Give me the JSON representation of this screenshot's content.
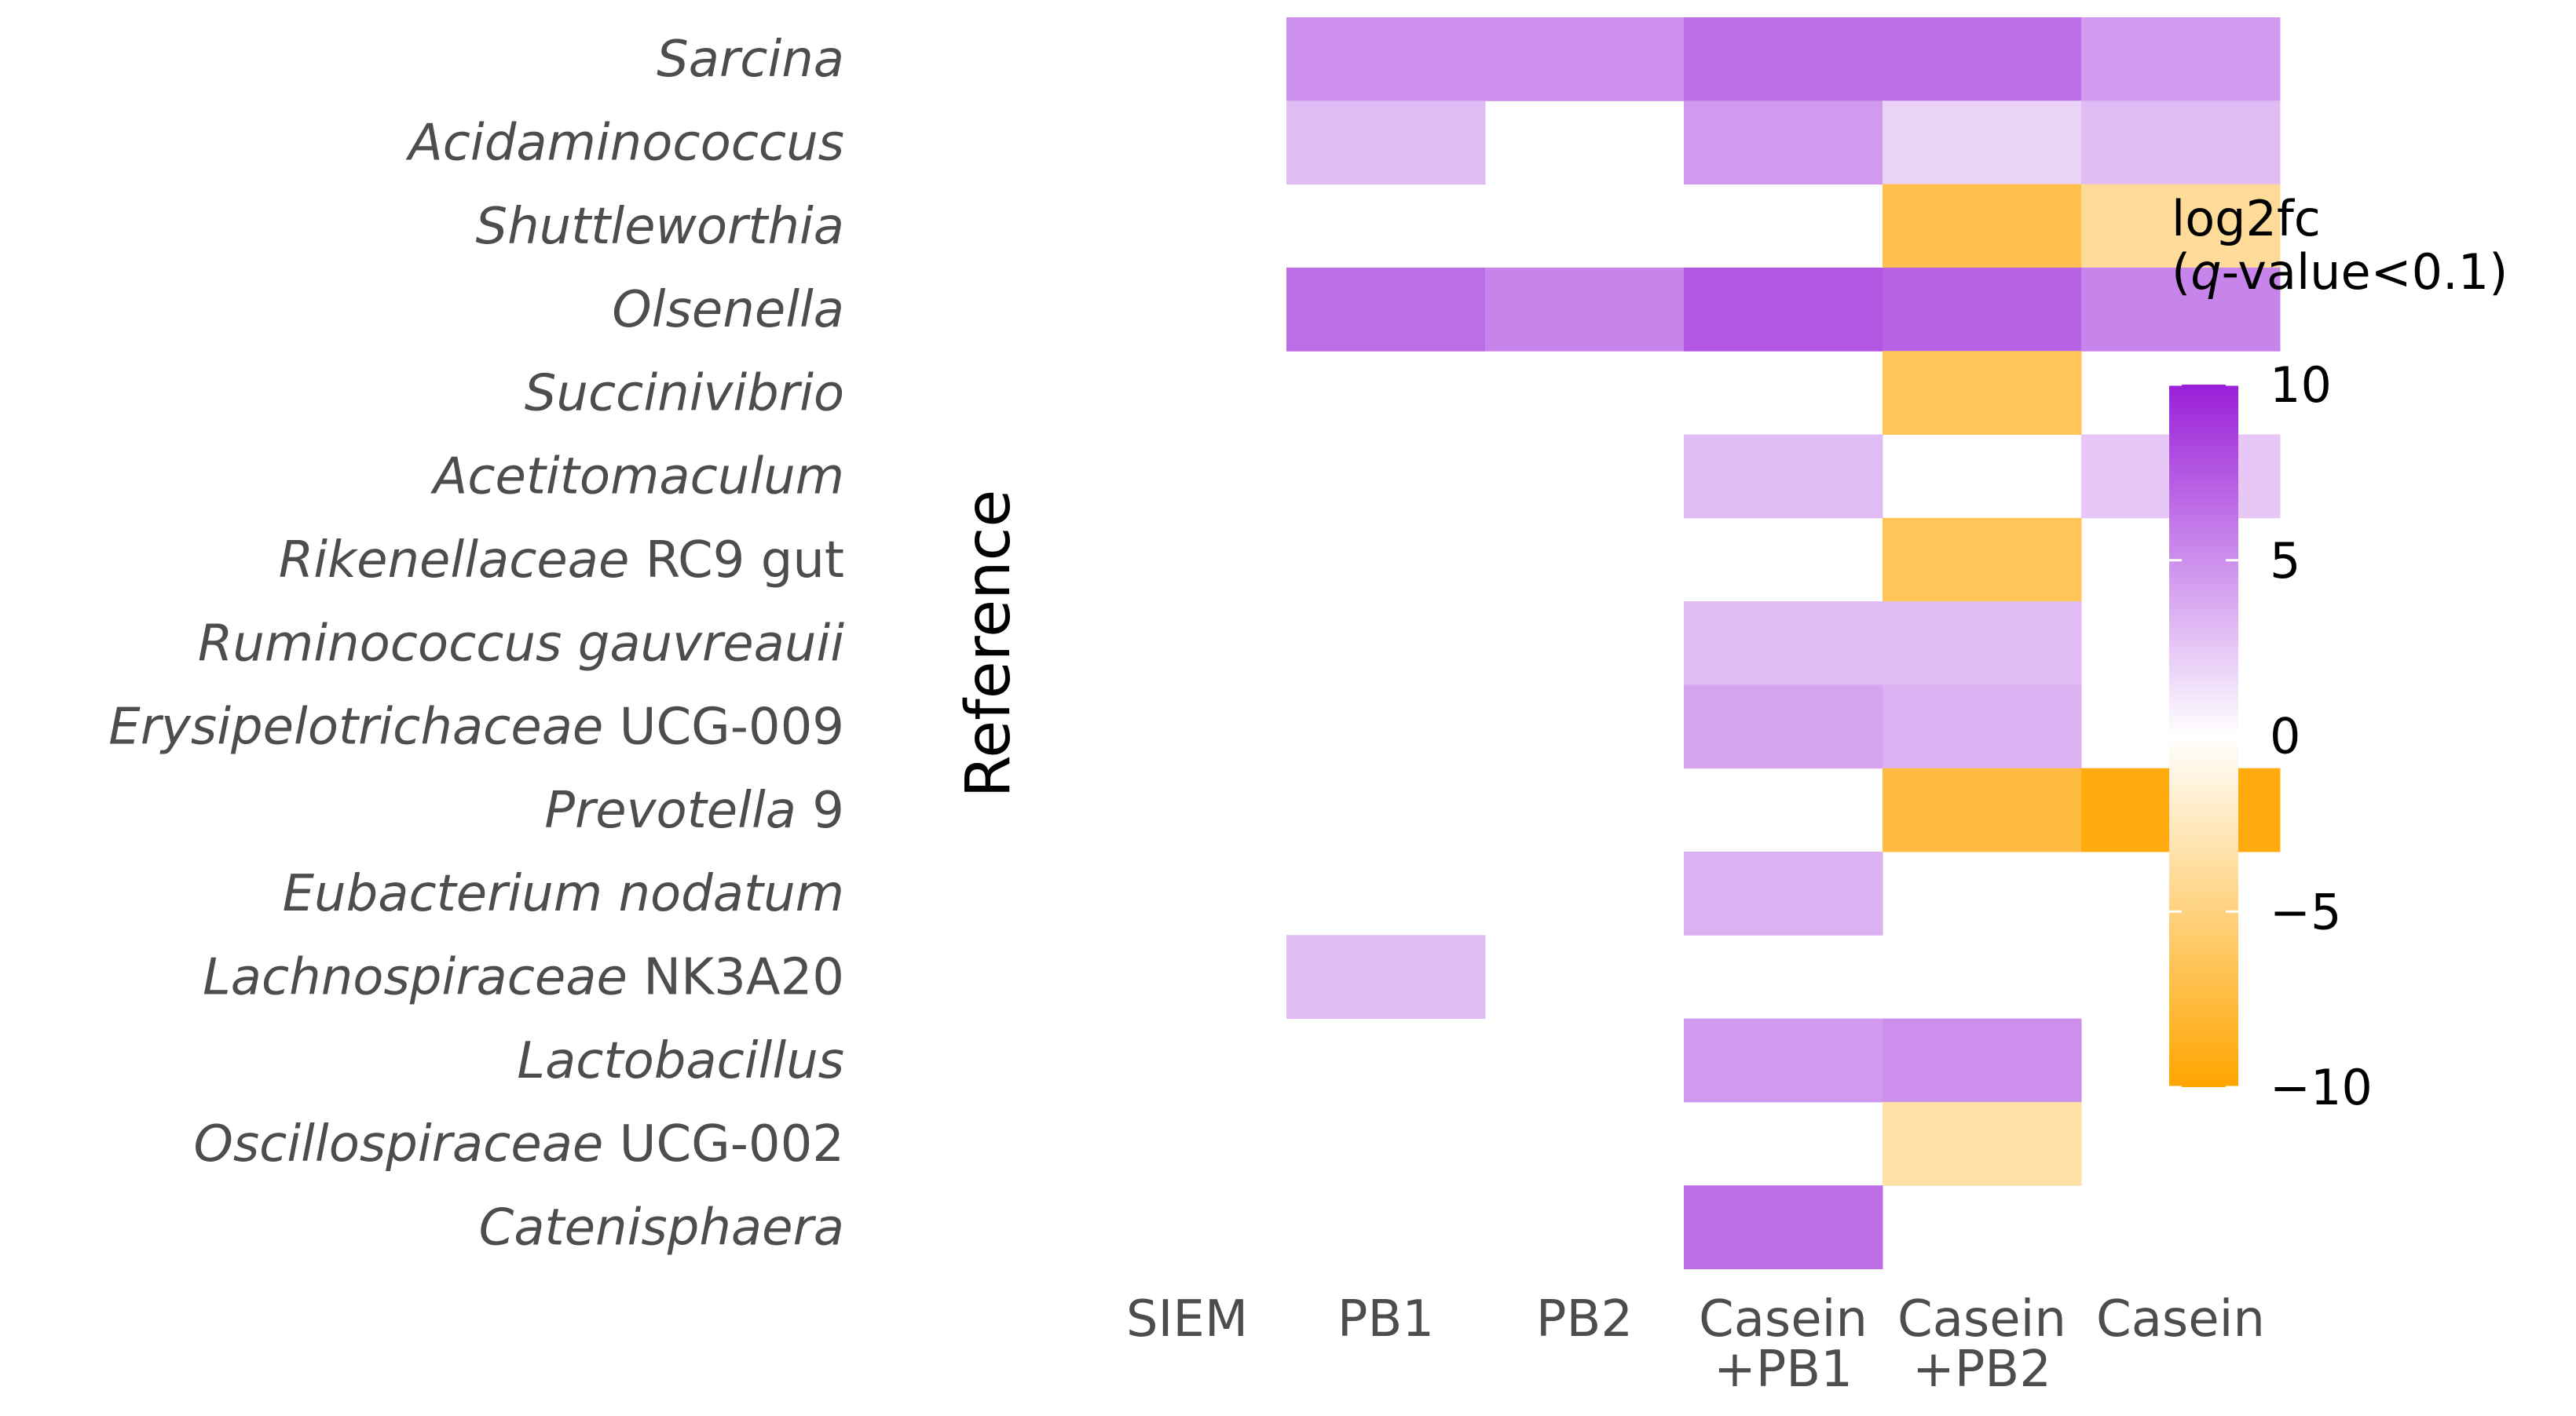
{
  "chart_data": {
    "type": "heatmap",
    "columns": [
      {
        "line1": "SIEM",
        "line2": ""
      },
      {
        "line1": "PB1",
        "line2": ""
      },
      {
        "line1": "PB2",
        "line2": ""
      },
      {
        "line1": "Casein",
        "line2": "+PB1"
      },
      {
        "line1": "Casein",
        "line2": "+PB2"
      },
      {
        "line1": "Casein",
        "line2": ""
      }
    ],
    "rows": [
      {
        "italic": "Sarcina",
        "plain": ""
      },
      {
        "italic": "Acidaminococcus",
        "plain": ""
      },
      {
        "italic": "Shuttleworthia",
        "plain": ""
      },
      {
        "italic": "Olsenella",
        "plain": ""
      },
      {
        "italic": "Succinivibrio",
        "plain": ""
      },
      {
        "italic": "Acetitomaculum",
        "plain": ""
      },
      {
        "italic": "Rikenellaceae",
        "plain": " RC9 gut"
      },
      {
        "italic": "Ruminococcus gauvreauii",
        "plain": ""
      },
      {
        "italic": "Erysipelotrichaceae",
        "plain": " UCG-009"
      },
      {
        "italic": "Prevotella",
        "plain": " 9"
      },
      {
        "italic": "Eubacterium nodatum",
        "plain": ""
      },
      {
        "italic": "Lachnospiraceae",
        "plain": " NK3A20"
      },
      {
        "italic": "Lactobacillus",
        "plain": ""
      },
      {
        "italic": "Oscillospiraceae",
        "plain": " UCG-002"
      },
      {
        "italic": "Catenisphaera",
        "plain": ""
      }
    ],
    "values": [
      [
        null,
        5.0,
        5.0,
        6.5,
        6.5,
        4.5
      ],
      [
        null,
        3.0,
        null,
        4.5,
        2.0,
        3.0
      ],
      [
        null,
        null,
        null,
        null,
        -7.0,
        -4.0
      ],
      [
        null,
        6.5,
        5.5,
        7.5,
        7.0,
        5.5
      ],
      [
        null,
        null,
        null,
        null,
        -6.5,
        null
      ],
      [
        null,
        null,
        null,
        3.0,
        null,
        2.5
      ],
      [
        null,
        null,
        null,
        null,
        -6.5,
        null
      ],
      [
        null,
        null,
        null,
        3.0,
        3.0,
        null
      ],
      [
        null,
        null,
        null,
        4.0,
        3.5,
        null
      ],
      [
        null,
        null,
        null,
        null,
        -7.5,
        -9.5
      ],
      [
        null,
        null,
        null,
        3.5,
        null,
        null
      ],
      [
        null,
        3.0,
        null,
        null,
        null,
        null
      ],
      [
        null,
        null,
        null,
        4.5,
        5.0,
        null
      ],
      [
        null,
        null,
        null,
        null,
        -3.5,
        null
      ],
      [
        null,
        null,
        null,
        6.5,
        null,
        null
      ]
    ],
    "y_title": "Reference",
    "legend": {
      "title_line1": "log2fc",
      "title_q": "q",
      "title_rest": "-value<0.1)",
      "title_open": "(",
      "min": -10,
      "max": 10,
      "ticks": [
        10,
        5,
        0,
        -5,
        -10
      ],
      "tick_labels": [
        "10",
        "5",
        "0",
        "−5",
        "−10"
      ]
    },
    "colors": {
      "high": "#9a1fd9",
      "mid": "#ffffff",
      "low": "#ffa500",
      "text": "#4d4d4d"
    }
  }
}
